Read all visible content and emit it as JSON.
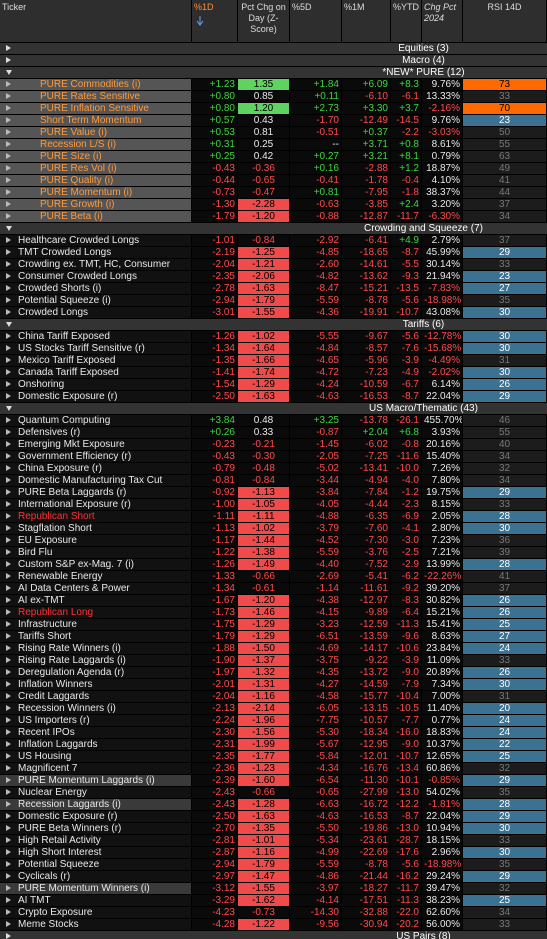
{
  "header": {
    "columns": [
      "Ticker",
      "%1D",
      "Pct Chg on Day (Z-Score)",
      "%5D",
      "%1M",
      "%YTD",
      "Chg Pct 2024",
      "RSI 14D"
    ]
  },
  "sections": [
    {
      "title": "Equities (3)",
      "rows": []
    },
    {
      "title": "Macro (4)",
      "rows": []
    },
    {
      "title": "*NEW* PURE (12)",
      "rows": [
        [
          "PURE Commodities (i)",
          "+1.23",
          "1.35",
          "+1.84",
          "+6.09",
          "+8.3",
          "9.76%",
          "73"
        ],
        [
          "PURE Rates Sensitive",
          "+0.80",
          "0.85",
          "+0.11",
          "-6.10",
          "-6.1",
          "13.33%",
          "33"
        ],
        [
          "PURE Inflation Sensitive",
          "+0.80",
          "1.20",
          "+2.73",
          "+3.30",
          "+3.7",
          "-2.16%",
          "70"
        ],
        [
          "Short Term Momentum",
          "+0.57",
          "0.43",
          "-1.70",
          "-12.49",
          "-14.5",
          "9.76%",
          "23"
        ],
        [
          "PURE Value (i)",
          "+0.53",
          "0.81",
          "-0.51",
          "+0.37",
          "-2.2",
          "-3.03%",
          "50"
        ],
        [
          "Recession L/S (i)",
          "+0.31",
          "0.25",
          "--",
          "+3.71",
          "+0.8",
          "8.61%",
          "55"
        ],
        [
          "PURE Size (i)",
          "+0.25",
          "0.42",
          "+0.27",
          "+3.21",
          "+8.1",
          "0.79%",
          "63"
        ],
        [
          "PURE Res Vol (i)",
          "-0.43",
          "-0.36",
          "+0.16",
          "-2.88",
          "+1.2",
          "18.87%",
          "49"
        ],
        [
          "PURE Quality (i)",
          "-0.44",
          "-0.65",
          "-0.41",
          "-1.78",
          "-0.4",
          "4.10%",
          "41"
        ],
        [
          "PURE Momentum (i)",
          "-0.73",
          "-0.47",
          "+0.81",
          "-7.95",
          "-1.8",
          "38.37%",
          "44"
        ],
        [
          "PURE Growth (i)",
          "-1.30",
          "-2.28",
          "-0.63",
          "-3.85",
          "+2.4",
          "3.20%",
          "37"
        ],
        [
          "PURE Beta (i)",
          "-1.79",
          "-1.20",
          "-0.88",
          "-12.87",
          "-11.7",
          "-6.30%",
          "34"
        ]
      ]
    },
    {
      "title": "Crowding and Squeeze (7)",
      "rows": [
        [
          "Healthcare Crowded Longs",
          "-1.01",
          "-0.84",
          "-2.92",
          "-6.41",
          "+4.9",
          "2.79%",
          "37"
        ],
        [
          "TMT Crowded Longs",
          "-2.19",
          "-1.25",
          "-4.85",
          "-18.65",
          "-8.7",
          "45.99%",
          "29"
        ],
        [
          "Crowding ex. TMT, HC, Consumer",
          "-2.04",
          "-1.21",
          "-2.60",
          "-14.61",
          "-5.5",
          "30.14%",
          "33"
        ],
        [
          "Consumer Crowded Longs",
          "-2.35",
          "-2.06",
          "-4.82",
          "-13.62",
          "-9.3",
          "21.94%",
          "23"
        ],
        [
          "Crowded Shorts (i)",
          "-2.78",
          "-1.63",
          "-8.47",
          "-15.21",
          "-13.5",
          "-7.83%",
          "27"
        ],
        [
          "Potential Squeeze (i)",
          "-2.94",
          "-1.79",
          "-5.59",
          "-8.78",
          "-5.6",
          "-18.98%",
          "35"
        ],
        [
          "Crowded Longs",
          "-3.01",
          "-1.55",
          "-4.36",
          "-19.91",
          "-10.7",
          "43.08%",
          "30"
        ]
      ]
    },
    {
      "title": "Tariffs (6)",
      "rows": [
        [
          "China Tariff Exposed",
          "-1.26",
          "-1.02",
          "-5.55",
          "-9.67",
          "-5.6",
          "-12.78%",
          "30"
        ],
        [
          "US Stocks Tariff Sensitive (r)",
          "-1.34",
          "-1.64",
          "-4.84",
          "-8.57",
          "-7.6",
          "-15.68%",
          "30"
        ],
        [
          "Mexico Tariff Exposed",
          "-1.35",
          "-1.66",
          "-4.65",
          "-5.96",
          "-3.9",
          "-4.49%",
          "31"
        ],
        [
          "Canada Tariff Exposed",
          "-1.41",
          "-1.74",
          "-4.72",
          "-7.23",
          "-4.9",
          "-2.02%",
          "30"
        ],
        [
          "Onshoring",
          "-1.54",
          "-1.29",
          "-4.24",
          "-10.59",
          "-6.7",
          "6.14%",
          "26"
        ],
        [
          "Domestic Exposure (r)",
          "-2.50",
          "-1.63",
          "-4.63",
          "-16.53",
          "-8.7",
          "22.04%",
          "29"
        ]
      ]
    },
    {
      "title": "US Macro/Thematic (43)",
      "rows": [
        [
          "Quantum Computing",
          "+3.84",
          "0.48",
          "+3.25",
          "-13.78",
          "-26.1",
          "455.70%",
          "46"
        ],
        [
          "Defensives (r)",
          "+0.26",
          "0.33",
          "-0.87",
          "+2.04",
          "+6.8",
          "3.93%",
          "55"
        ],
        [
          "Emerging Mkt Exposure",
          "-0.23",
          "-0.21",
          "-1.45",
          "-6.02",
          "-0.8",
          "20.16%",
          "40"
        ],
        [
          "Government Efficiency (r)",
          "-0.43",
          "-0.30",
          "-2.05",
          "-7.25",
          "-11.6",
          "15.40%",
          "34"
        ],
        [
          "China Exposure (r)",
          "-0.79",
          "-0.48",
          "-5.02",
          "-13.41",
          "-10.0",
          "7.26%",
          "32"
        ],
        [
          "Domestic Manufacturing Tax Cut",
          "-0.81",
          "-0.84",
          "-3.44",
          "-4.94",
          "-4.0",
          "7.80%",
          "34"
        ],
        [
          "PURE Beta Laggards (r)",
          "-0.92",
          "-1.13",
          "-3.84",
          "-7.84",
          "-1.2",
          "19.75%",
          "29"
        ],
        [
          "International Exposure (r)",
          "-1.00",
          "-1.05",
          "-4.05",
          "-4.44",
          "-2.3",
          "8.15%",
          "33"
        ],
        [
          "Republican Short",
          "-1.11",
          "-1.11",
          "-4.88",
          "-6.35",
          "-6.9",
          "2.05%",
          "28"
        ],
        [
          "Stagflation Short",
          "-1.13",
          "-1.02",
          "-3.79",
          "-7.60",
          "-4.1",
          "2.80%",
          "30"
        ],
        [
          "EU Exposure",
          "-1.17",
          "-1.44",
          "-4.52",
          "-7.30",
          "-3.0",
          "7.23%",
          "36"
        ],
        [
          "Bird Flu",
          "-1.22",
          "-1.38",
          "-5.59",
          "-3.76",
          "-2.5",
          "7.21%",
          "39"
        ],
        [
          "Custom S&P ex-Mag. 7 (i)",
          "-1.26",
          "-1.49",
          "-4.40",
          "-7.52",
          "-2.9",
          "13.99%",
          "28"
        ],
        [
          "Renewable Energy",
          "-1.33",
          "-0.66",
          "-2.69",
          "-5.41",
          "-6.2",
          "-22.26%",
          "41"
        ],
        [
          "AI Data Centers & Power",
          "-1.34",
          "-0.61",
          "-1.14",
          "-11.61",
          "-9.2",
          "39.20%",
          "37"
        ],
        [
          "AI ex-TMT",
          "-1.67",
          "-1.20",
          "-4.38",
          "-12.97",
          "-8.3",
          "30.82%",
          "26"
        ],
        [
          "Republican Long",
          "-1.73",
          "-1.46",
          "-4.15",
          "-9.89",
          "-6.4",
          "15.21%",
          "26"
        ],
        [
          "Infrastructure",
          "-1.75",
          "-1.29",
          "-3.23",
          "-12.59",
          "-11.3",
          "15.41%",
          "25"
        ],
        [
          "Tariffs Short",
          "-1.79",
          "-1.29",
          "-6.51",
          "-13.59",
          "-9.6",
          "8.63%",
          "27"
        ],
        [
          "Rising Rate Winners (i)",
          "-1.88",
          "-1.50",
          "-4.69",
          "-14.17",
          "-10.6",
          "23.84%",
          "24"
        ],
        [
          "Rising Rate Laggards (i)",
          "-1.90",
          "-1.37",
          "-3.75",
          "-9.22",
          "-3.9",
          "11.09%",
          "33"
        ],
        [
          "Deregulation Agenda (r)",
          "-1.97",
          "-1.32",
          "-4.35",
          "-13.72",
          "-9.0",
          "20.89%",
          "26"
        ],
        [
          "Inflation Winners",
          "-2.01",
          "-1.31",
          "-4.27",
          "-14.59",
          "-7.9",
          "7.34%",
          "30"
        ],
        [
          "Credit Laggards",
          "-2.04",
          "-1.16",
          "-4.58",
          "-15.77",
          "-10.4",
          "7.00%",
          "31"
        ],
        [
          "Recession Winners (i)",
          "-2.13",
          "-2.14",
          "-6.05",
          "-13.15",
          "-10.5",
          "11.40%",
          "20"
        ],
        [
          "US Importers (r)",
          "-2.24",
          "-1.96",
          "-7.75",
          "-10.57",
          "-7.7",
          "0.77%",
          "24"
        ],
        [
          "Recent IPOs",
          "-2.30",
          "-1.56",
          "-5.30",
          "-18.34",
          "-16.0",
          "18.83%",
          "24"
        ],
        [
          "Inflation Laggards",
          "-2.31",
          "-1.99",
          "-5.67",
          "-12.95",
          "-9.0",
          "10.37%",
          "22"
        ],
        [
          "US Housing",
          "-2.35",
          "-1.77",
          "-5.84",
          "-12.01",
          "-10.7",
          "12.65%",
          "25"
        ],
        [
          "Magnificent 7",
          "-2.36",
          "-1.23",
          "-4.34",
          "-16.76",
          "-13.4",
          "60.86%",
          "32"
        ],
        [
          "PURE Momentum Laggards (i)",
          "-2.39",
          "-1.60",
          "-6.54",
          "-11.30",
          "-10.1",
          "-0.85%",
          "29"
        ],
        [
          "Nuclear Energy",
          "-2.43",
          "-0.66",
          "-0.65",
          "-27.99",
          "-13.0",
          "54.02%",
          "35"
        ],
        [
          "Recession Laggards (i)",
          "-2.43",
          "-1.28",
          "-6.63",
          "-16.72",
          "-12.2",
          "-1.81%",
          "28"
        ],
        [
          "Domestic Exposure (r)",
          "-2.50",
          "-1.63",
          "-4.63",
          "-16.53",
          "-8.7",
          "22.04%",
          "29"
        ],
        [
          "PURE Beta Winners (r)",
          "-2.70",
          "-1.35",
          "-5.50",
          "-19.86",
          "-13.0",
          "10.94%",
          "30"
        ],
        [
          "High Retail Activity",
          "-2.81",
          "-1.01",
          "-5.34",
          "-23.61",
          "-28.7",
          "18.15%",
          "33"
        ],
        [
          "High Short Interest",
          "-2.87",
          "-1.16",
          "-4.99",
          "-22.69",
          "-17.6",
          "2.96%",
          "30"
        ],
        [
          "Potential Squeeze",
          "-2.94",
          "-1.79",
          "-5.59",
          "-8.78",
          "-5.6",
          "-18.98%",
          "35"
        ],
        [
          "Cyclicals (r)",
          "-2.97",
          "-1.47",
          "-4.86",
          "-21.44",
          "-16.2",
          "29.24%",
          "29"
        ],
        [
          "PURE Momentum Winners (i)",
          "-3.12",
          "-1.55",
          "-3.97",
          "-18.27",
          "-11.7",
          "39.47%",
          "32"
        ],
        [
          "AI TMT",
          "-3.29",
          "-1.62",
          "-4.14",
          "-17.51",
          "-11.3",
          "38.23%",
          "25"
        ],
        [
          "Crypto Exposure",
          "-4.23",
          "-0.73",
          "-14.30",
          "-32.88",
          "-22.0",
          "62.60%",
          "34"
        ],
        [
          "Meme Stocks",
          "-4.28",
          "-1.22",
          "-9.56",
          "-30.94",
          "-20.2",
          "56.00%",
          "33"
        ]
      ]
    },
    {
      "title": "US Pairs (8)",
      "rows": []
    }
  ]
}
